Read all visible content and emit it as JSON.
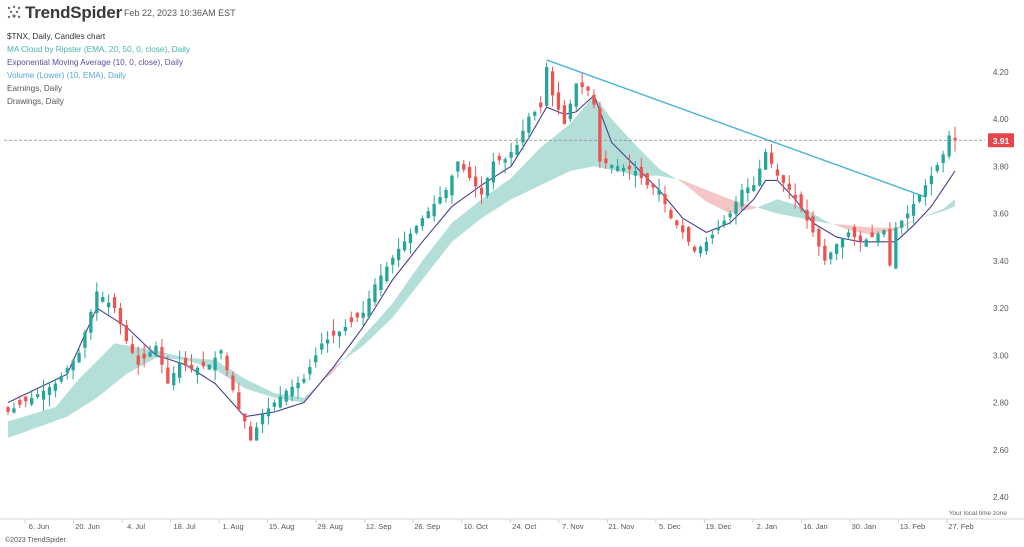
{
  "header": {
    "brand": "TrendSpider",
    "timestamp": "Feb 22, 2023 10:36AM EST"
  },
  "legend": {
    "title": "$TNX, Daily, Candles chart",
    "items": [
      {
        "label": "MA Cloud by Ripster (EMA, 20, 50, 0, close), Daily"
      },
      {
        "label": "Exponential Moving Average (10, 0, close), Daily"
      },
      {
        "label": "Volume (Lower) (10, EMA), Daily"
      },
      {
        "label": "Earnings, Daily"
      },
      {
        "label": "Drawings, Daily"
      }
    ]
  },
  "footer": {
    "copyright": "©2023 TrendSpider",
    "timezone": "Your local time zone"
  },
  "colors": {
    "up": "#26a69a",
    "down": "#ef5350",
    "cloud_bull": "#b4dfd9",
    "cloud_bear": "#f5c6c6",
    "ema": "#4a3f8c",
    "trendline": "#4bb3d8",
    "price_tag": "#e5454b"
  },
  "chart_data": {
    "type": "candlestick",
    "symbol": "$TNX",
    "interval": "Daily",
    "ylim": [
      2.4,
      4.3
    ],
    "yticks": [
      "2.40",
      "2.60",
      "2.80",
      "3.00",
      "3.20",
      "3.40",
      "3.60",
      "3.80",
      "4.00",
      "4.20"
    ],
    "xticks": [
      "6. Jun",
      "20. Jun",
      "4. Jul",
      "18. Jul",
      "1. Aug",
      "15. Aug",
      "29. Aug",
      "12. Sep",
      "26. Sep",
      "10. Oct",
      "24. Oct",
      "7. Nov",
      "21. Nov",
      "5. Dec",
      "19. Dec",
      "2. Jan",
      "16. Jan",
      "30. Jan",
      "13. Feb",
      "27. Feb"
    ],
    "last_price": 3.91,
    "last_price_label": "3.91",
    "close_anchors": [
      [
        0,
        2.76
      ],
      [
        8,
        2.88
      ],
      [
        12,
        3.01
      ],
      [
        15,
        3.27
      ],
      [
        18,
        3.2
      ],
      [
        20,
        3.06
      ],
      [
        22,
        2.96
      ],
      [
        25,
        3.04
      ],
      [
        27,
        2.88
      ],
      [
        29,
        2.97
      ],
      [
        31,
        2.94
      ],
      [
        34,
        2.96
      ],
      [
        36,
        3.02
      ],
      [
        39,
        2.77
      ],
      [
        40,
        2.72
      ],
      [
        41,
        2.64
      ],
      [
        43,
        2.75
      ],
      [
        45,
        2.8
      ],
      [
        47,
        2.85
      ],
      [
        50,
        2.9
      ],
      [
        53,
        3.05
      ],
      [
        56,
        3.1
      ],
      [
        60,
        3.18
      ],
      [
        62,
        3.3
      ],
      [
        66,
        3.45
      ],
      [
        70,
        3.58
      ],
      [
        74,
        3.7
      ],
      [
        76,
        3.82
      ],
      [
        78,
        3.75
      ],
      [
        80,
        3.68
      ],
      [
        82,
        3.82
      ],
      [
        84,
        3.83
      ],
      [
        86,
        3.89
      ],
      [
        88,
        4.01
      ],
      [
        90,
        4.05
      ],
      [
        91,
        4.22
      ],
      [
        92,
        4.1
      ],
      [
        94,
        3.98
      ],
      [
        96,
        4.15
      ],
      [
        98,
        4.12
      ],
      [
        99,
        4.06
      ],
      [
        100,
        3.82
      ],
      [
        103,
        3.8
      ],
      [
        106,
        3.78
      ],
      [
        108,
        3.72
      ],
      [
        110,
        3.7
      ],
      [
        112,
        3.58
      ],
      [
        114,
        3.52
      ],
      [
        116,
        3.44
      ],
      [
        118,
        3.48
      ],
      [
        120,
        3.54
      ],
      [
        122,
        3.6
      ],
      [
        124,
        3.7
      ],
      [
        126,
        3.72
      ],
      [
        128,
        3.86
      ],
      [
        130,
        3.76
      ],
      [
        132,
        3.7
      ],
      [
        134,
        3.62
      ],
      [
        136,
        3.52
      ],
      [
        138,
        3.4
      ],
      [
        140,
        3.47
      ],
      [
        142,
        3.52
      ],
      [
        144,
        3.48
      ],
      [
        146,
        3.5
      ],
      [
        148,
        3.53
      ],
      [
        149,
        3.38
      ],
      [
        150,
        3.54
      ],
      [
        152,
        3.6
      ],
      [
        154,
        3.68
      ],
      [
        156,
        3.76
      ],
      [
        158,
        3.85
      ],
      [
        159,
        3.93
      ],
      [
        160,
        3.91
      ]
    ],
    "ema10_anchors": [
      [
        0,
        2.8
      ],
      [
        10,
        2.92
      ],
      [
        15,
        3.2
      ],
      [
        20,
        3.12
      ],
      [
        25,
        3.0
      ],
      [
        30,
        2.96
      ],
      [
        35,
        2.88
      ],
      [
        40,
        2.74
      ],
      [
        45,
        2.76
      ],
      [
        50,
        2.8
      ],
      [
        55,
        2.95
      ],
      [
        60,
        3.12
      ],
      [
        65,
        3.32
      ],
      [
        70,
        3.48
      ],
      [
        75,
        3.63
      ],
      [
        80,
        3.72
      ],
      [
        85,
        3.8
      ],
      [
        88,
        3.92
      ],
      [
        91,
        4.05
      ],
      [
        94,
        4.02
      ],
      [
        96,
        4.03
      ],
      [
        99,
        4.1
      ],
      [
        102,
        3.9
      ],
      [
        106,
        3.8
      ],
      [
        110,
        3.7
      ],
      [
        114,
        3.58
      ],
      [
        118,
        3.52
      ],
      [
        122,
        3.56
      ],
      [
        126,
        3.66
      ],
      [
        128,
        3.74
      ],
      [
        130,
        3.74
      ],
      [
        133,
        3.66
      ],
      [
        136,
        3.56
      ],
      [
        140,
        3.5
      ],
      [
        144,
        3.48
      ],
      [
        147,
        3.48
      ],
      [
        150,
        3.48
      ],
      [
        153,
        3.55
      ],
      [
        156,
        3.63
      ],
      [
        160,
        3.78
      ]
    ],
    "ema20_anchors": [
      [
        0,
        2.72
      ],
      [
        8,
        2.78
      ],
      [
        12,
        2.9
      ],
      [
        18,
        3.05
      ],
      [
        25,
        3.02
      ],
      [
        30,
        2.99
      ],
      [
        35,
        2.98
      ],
      [
        40,
        2.9
      ],
      [
        45,
        2.84
      ],
      [
        50,
        2.82
      ],
      [
        55,
        2.93
      ],
      [
        60,
        3.08
      ],
      [
        65,
        3.22
      ],
      [
        70,
        3.4
      ],
      [
        75,
        3.56
      ],
      [
        80,
        3.66
      ],
      [
        85,
        3.75
      ],
      [
        90,
        3.88
      ],
      [
        95,
        3.98
      ],
      [
        99,
        4.1
      ],
      [
        102,
        4.0
      ],
      [
        106,
        3.89
      ],
      [
        110,
        3.79
      ],
      [
        114,
        3.73
      ],
      [
        118,
        3.65
      ],
      [
        122,
        3.6
      ],
      [
        126,
        3.62
      ],
      [
        130,
        3.66
      ],
      [
        134,
        3.63
      ],
      [
        138,
        3.57
      ],
      [
        142,
        3.53
      ],
      [
        146,
        3.51
      ],
      [
        150,
        3.53
      ],
      [
        154,
        3.58
      ],
      [
        158,
        3.62
      ],
      [
        160,
        3.66
      ]
    ],
    "ema50_anchors": [
      [
        0,
        2.65
      ],
      [
        10,
        2.74
      ],
      [
        15,
        2.82
      ],
      [
        20,
        2.92
      ],
      [
        25,
        2.99
      ],
      [
        30,
        2.98
      ],
      [
        35,
        2.94
      ],
      [
        40,
        2.86
      ],
      [
        45,
        2.82
      ],
      [
        50,
        2.8
      ],
      [
        55,
        2.95
      ],
      [
        60,
        3.04
      ],
      [
        65,
        3.16
      ],
      [
        70,
        3.32
      ],
      [
        75,
        3.48
      ],
      [
        80,
        3.58
      ],
      [
        85,
        3.66
      ],
      [
        90,
        3.72
      ],
      [
        95,
        3.78
      ],
      [
        99,
        3.8
      ],
      [
        103,
        3.78
      ],
      [
        106,
        3.76
      ],
      [
        110,
        3.76
      ],
      [
        114,
        3.74
      ],
      [
        118,
        3.7
      ],
      [
        122,
        3.66
      ],
      [
        126,
        3.63
      ],
      [
        130,
        3.6
      ],
      [
        134,
        3.58
      ],
      [
        138,
        3.56
      ],
      [
        142,
        3.55
      ],
      [
        146,
        3.54
      ],
      [
        150,
        3.54
      ],
      [
        154,
        3.58
      ],
      [
        158,
        3.61
      ],
      [
        160,
        3.63
      ]
    ],
    "trendline": [
      [
        91,
        4.25
      ],
      [
        155,
        3.67
      ]
    ],
    "count": 161
  }
}
